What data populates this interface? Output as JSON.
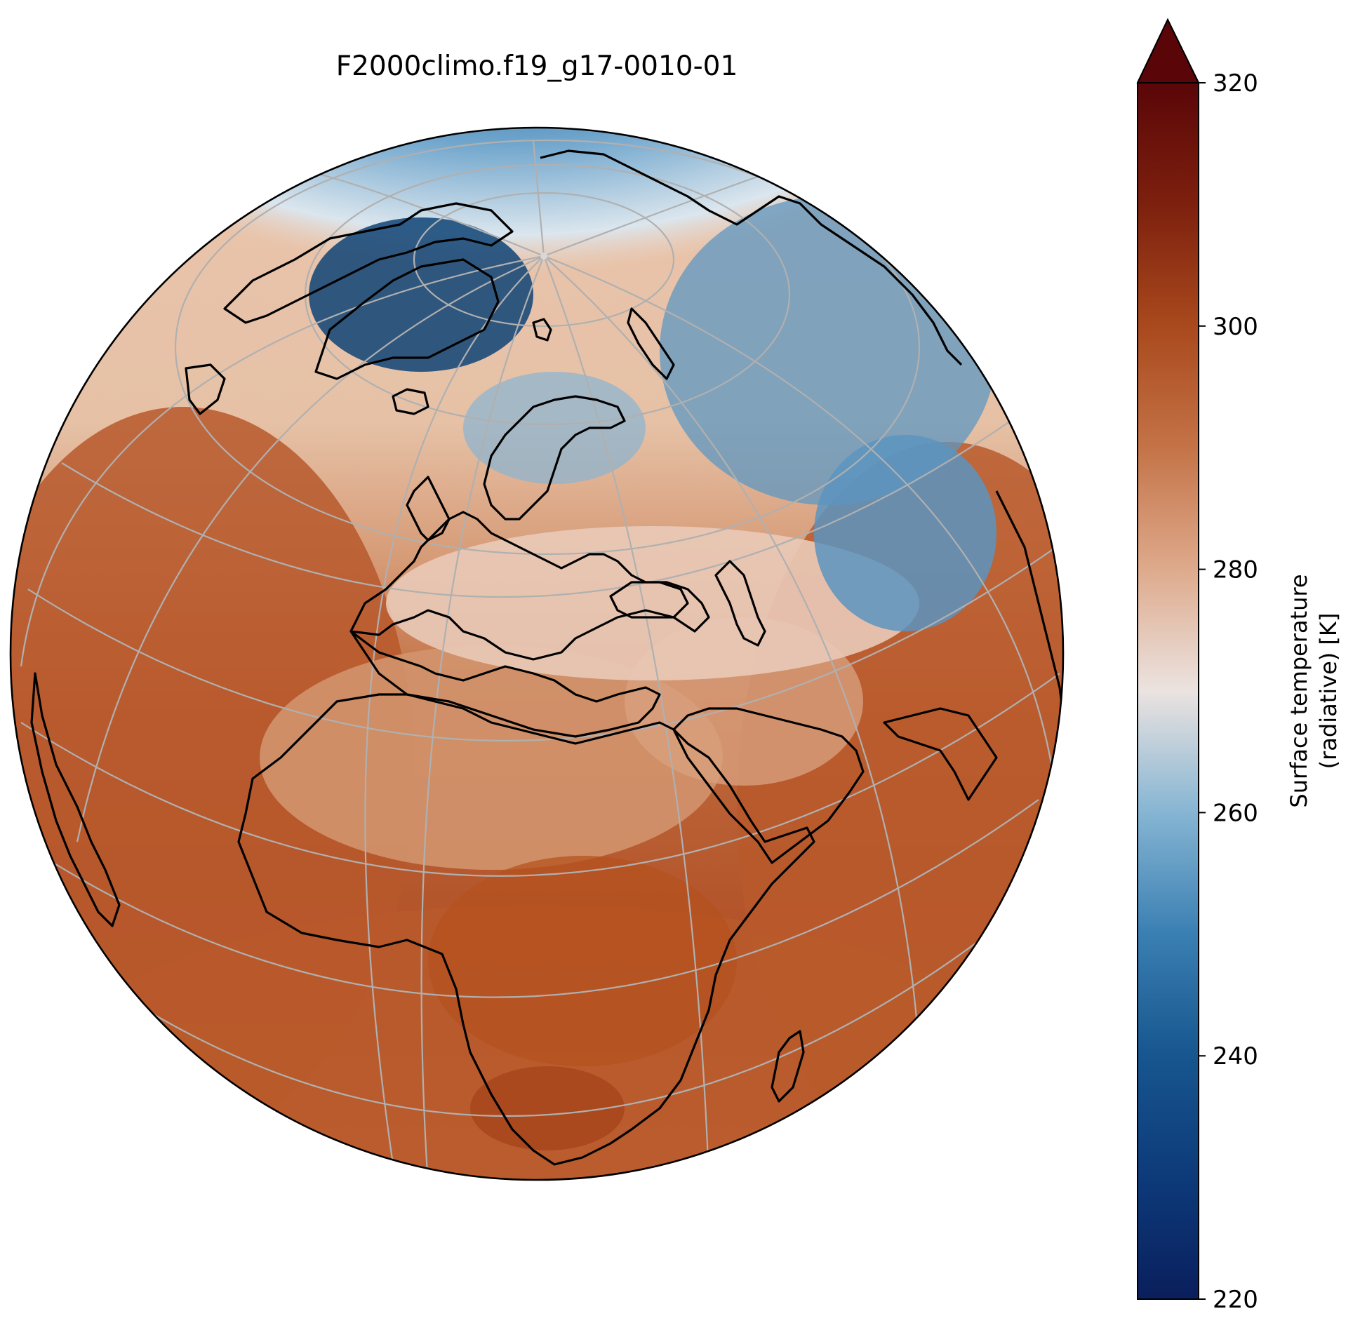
{
  "figure": {
    "title": "F2000climo.f19_g17-0010-01"
  },
  "colorbar": {
    "label_line1": "Surface temperature",
    "label_line2": "(radiative) [K]",
    "min": 220,
    "max": 320,
    "extend": "max",
    "colormap": "RdBu_r",
    "ticks": [
      "220",
      "240",
      "260",
      "280",
      "300",
      "320"
    ],
    "colors": {
      "low": "#0a1f5c",
      "mid": "#ebe3e0",
      "high": "#5a0608"
    }
  },
  "map": {
    "projection": "orthographic",
    "gridlines": "on",
    "coastlines": "on",
    "colors": {
      "coastline": "#000000",
      "gridline": "#b0b0b0",
      "warm": "#b55a2c",
      "cold": "#0f4d84"
    }
  }
}
